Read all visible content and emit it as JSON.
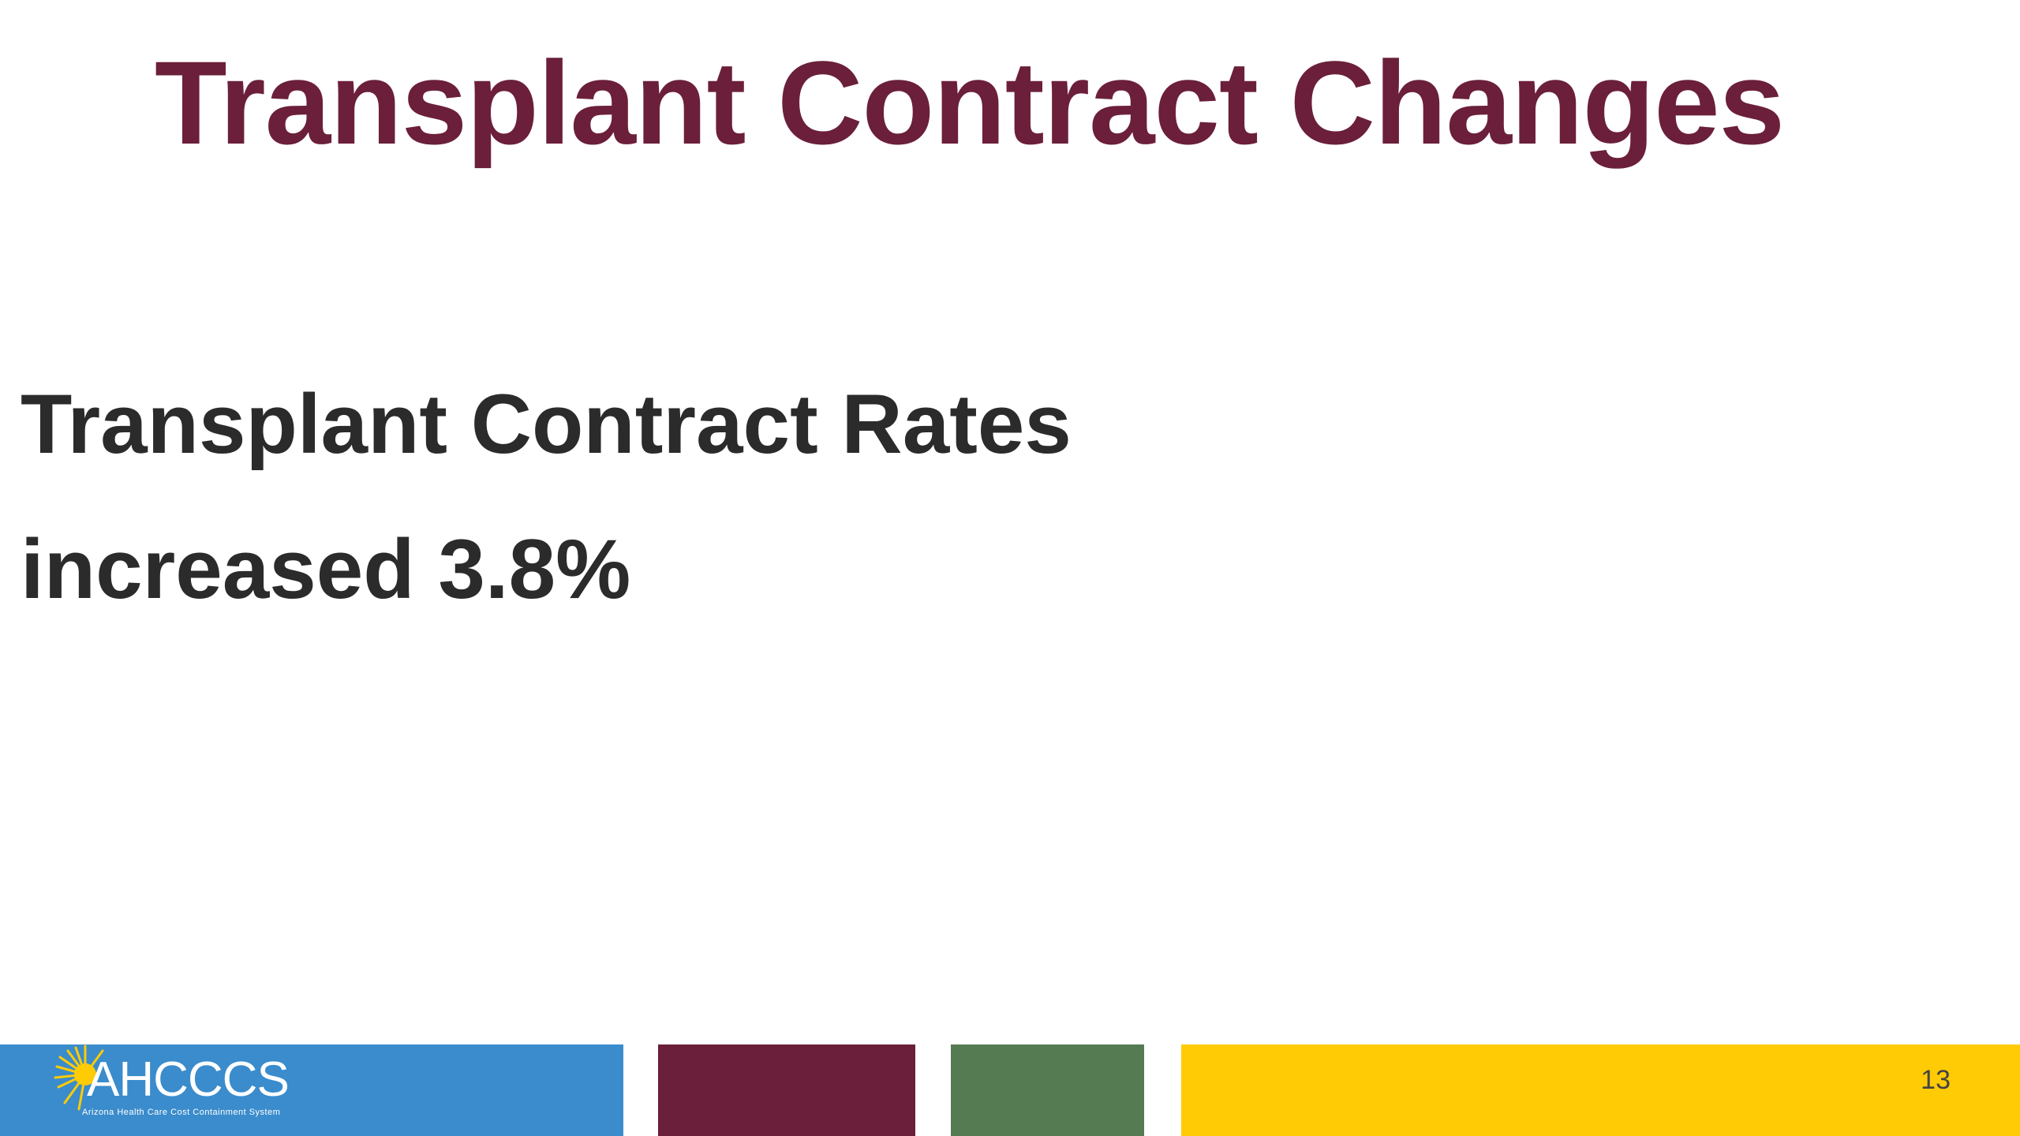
{
  "slide": {
    "title": "Transplant Contract Changes",
    "body_lines": [
      "Transplant Contract Rates",
      "increased 3.8%"
    ],
    "page_number": "13"
  },
  "footer": {
    "logo": {
      "name": "AHCCCS",
      "tagline": "Arizona Health Care Cost Containment System",
      "icon": "sun-icon"
    },
    "colors": {
      "blue": "#3a8ccc",
      "maroon": "#6b1f3a",
      "green": "#557b52",
      "yellow": "#ffcb05"
    }
  },
  "colors": {
    "title": "#6b1f3a",
    "body": "#2b2b2b",
    "background": "#ffffff"
  }
}
